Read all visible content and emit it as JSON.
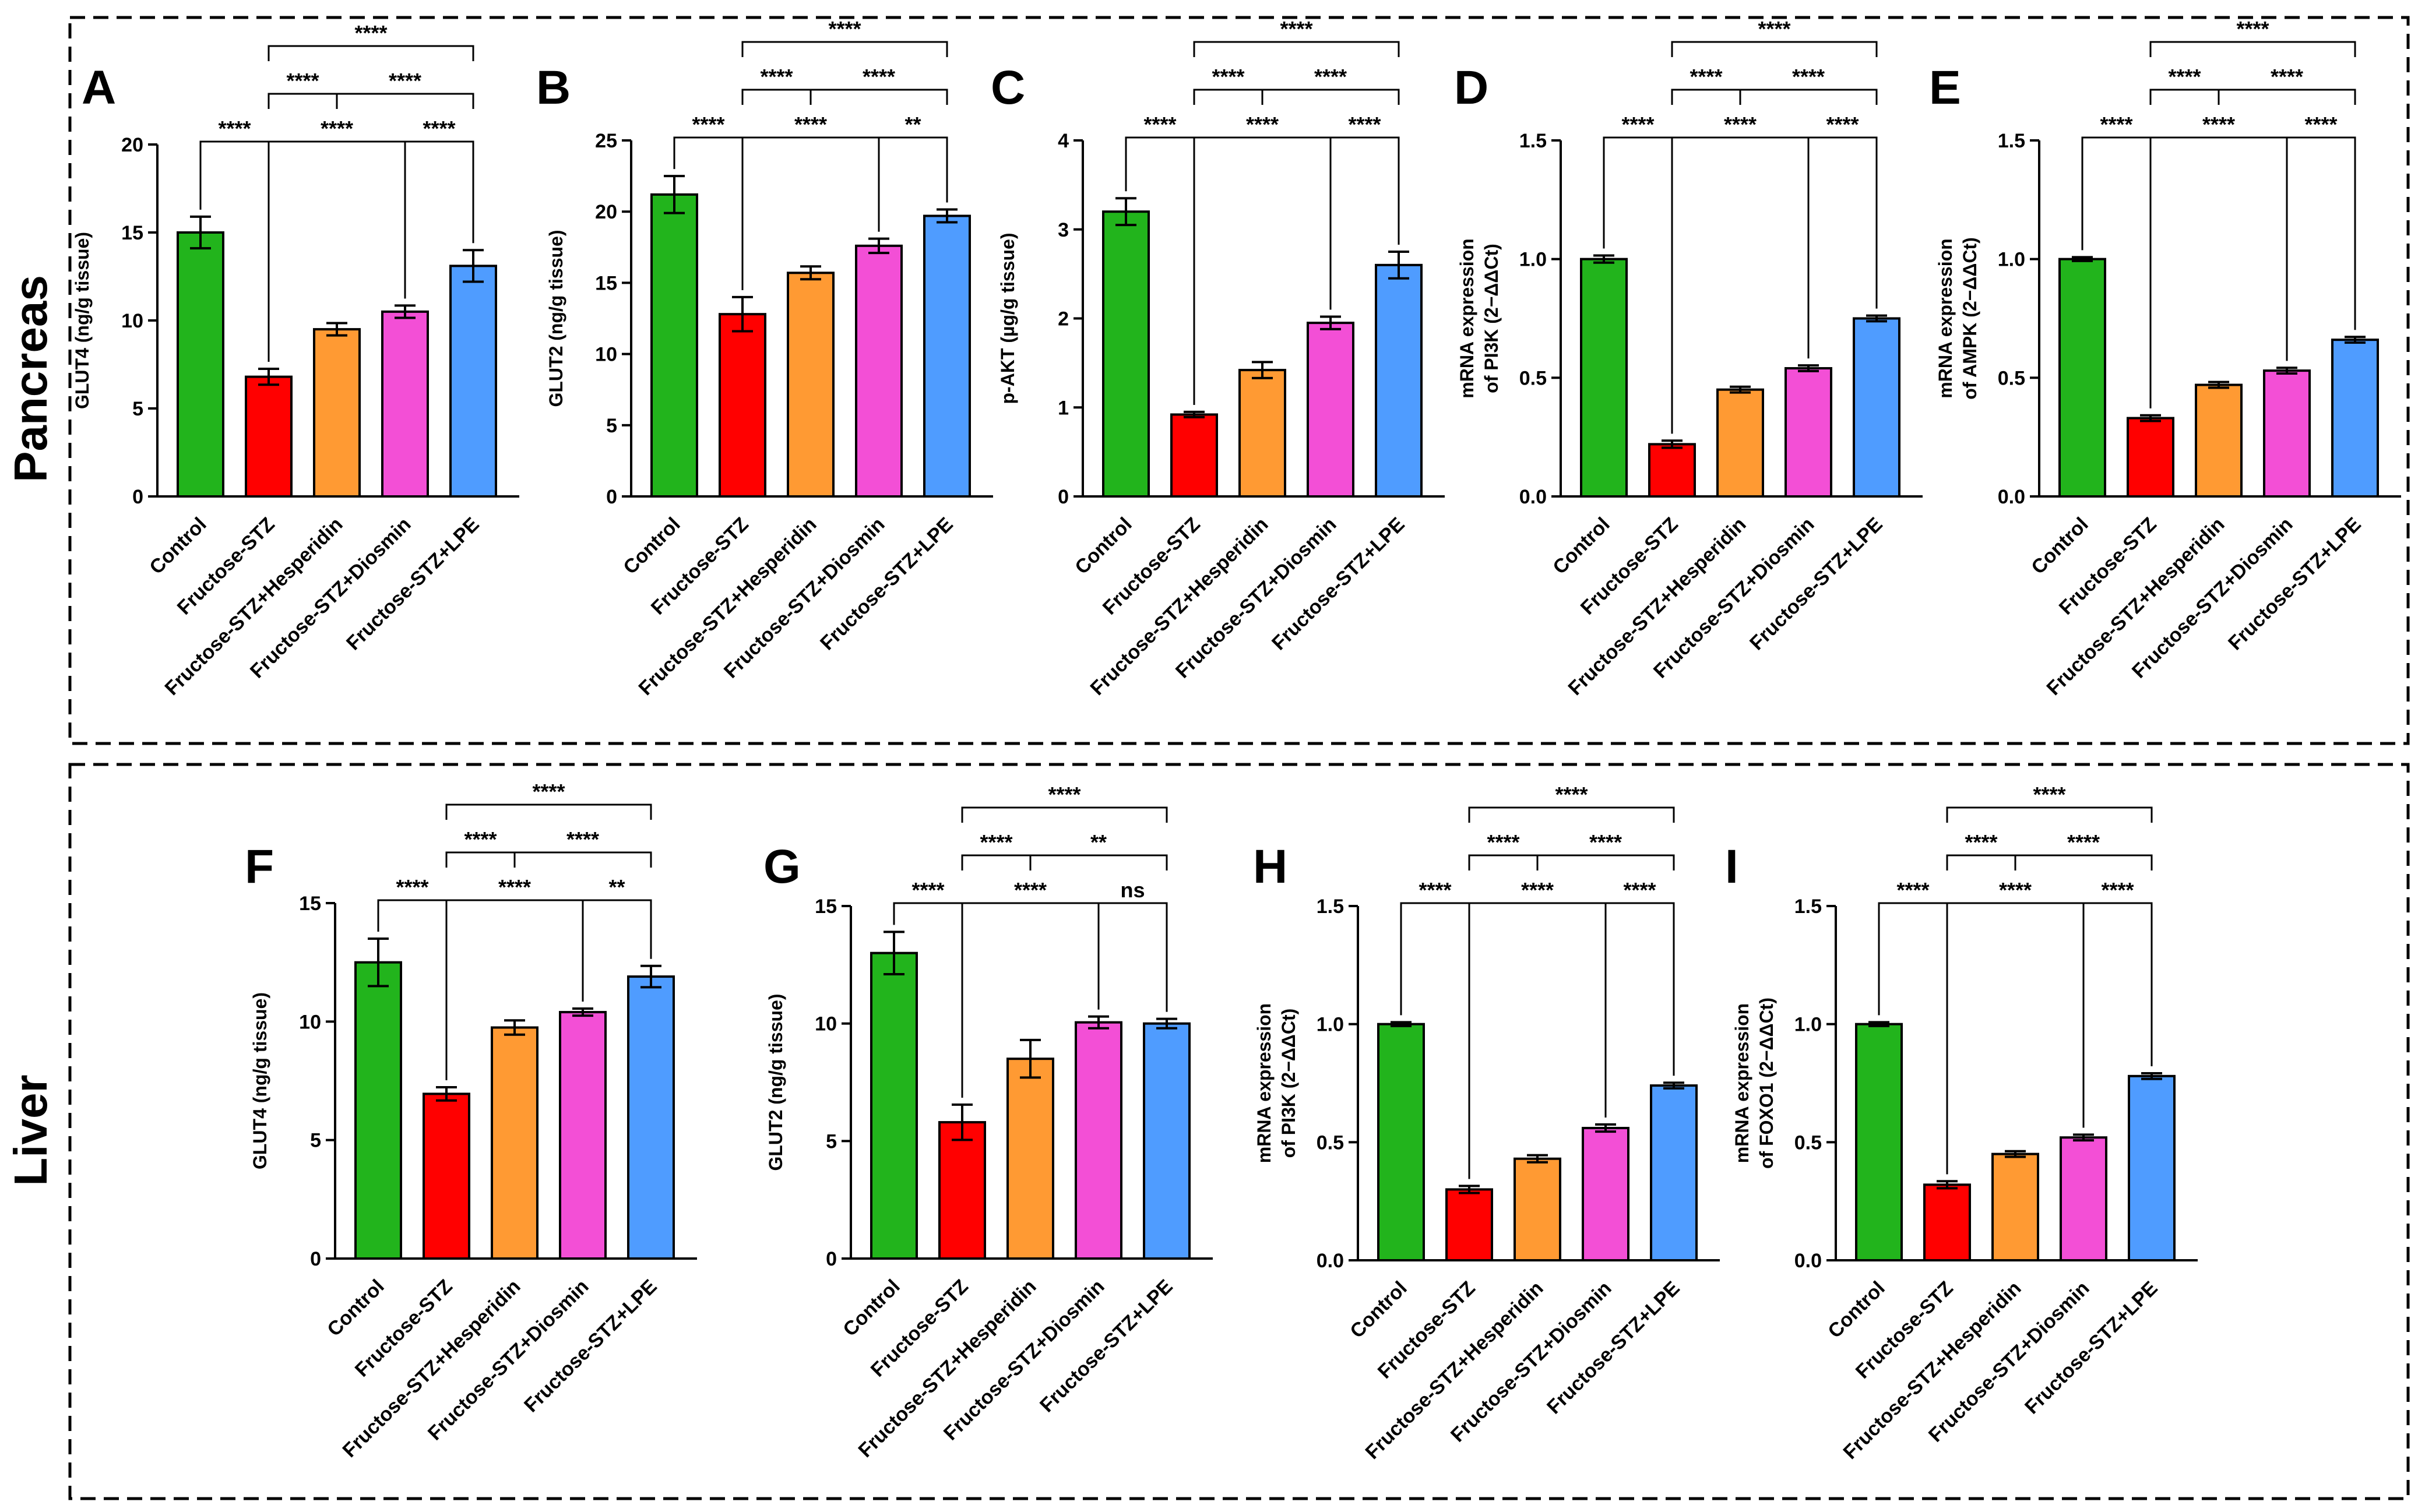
{
  "groups": [
    "Control",
    "Fructose-STZ",
    "Fructose-STZ+Hesperidin",
    "Fructose-STZ+Diosmin",
    "Fructose-STZ+LPE"
  ],
  "colors": [
    "#22b41c",
    "#ff0000",
    "#ff9a33",
    "#f34fd6",
    "#4f9cff"
  ],
  "sections": [
    {
      "label": "Pancreas"
    },
    {
      "label": "Liver"
    }
  ],
  "chart_data": [
    {
      "panel": "A",
      "section": "Pancreas",
      "type": "bar",
      "title": "",
      "ylabel": "GLUT4 (ng/g tissue)",
      "ylim": [
        0,
        20
      ],
      "yticks": [
        0,
        5,
        10,
        15,
        20
      ],
      "yticklabels": [
        "0",
        "5",
        "10",
        "15",
        "20"
      ],
      "categories": [
        "Control",
        "Fructose-STZ",
        "Fructose-STZ+Hesperidin",
        "Fructose-STZ+Diosmin",
        "Fructose-STZ+LPE"
      ],
      "values": [
        15.0,
        6.8,
        9.5,
        10.5,
        13.1
      ],
      "errors": [
        0.9,
        0.45,
        0.35,
        0.35,
        0.9
      ],
      "comparisons": [
        {
          "from": 0,
          "to": 1,
          "label": "****",
          "level": 0
        },
        {
          "from": 1,
          "to": 3,
          "label": "****",
          "level": 0
        },
        {
          "from": 3,
          "to": 4,
          "label": "****",
          "level": 0
        },
        {
          "from": 1,
          "to": 2,
          "label": "****",
          "level": 1
        },
        {
          "from": 2,
          "to": 4,
          "label": "****",
          "level": 1
        },
        {
          "from": 1,
          "to": 4,
          "label": "****",
          "level": 2
        }
      ]
    },
    {
      "panel": "B",
      "section": "Pancreas",
      "type": "bar",
      "title": "",
      "ylabel": "GLUT2 (ng/g tissue)",
      "ylim": [
        0,
        25
      ],
      "yticks": [
        0,
        5,
        10,
        15,
        20,
        25
      ],
      "yticklabels": [
        "0",
        "5",
        "10",
        "15",
        "20",
        "25"
      ],
      "categories": [
        "Control",
        "Fructose-STZ",
        "Fructose-STZ+Hesperidin",
        "Fructose-STZ+Diosmin",
        "Fructose-STZ+LPE"
      ],
      "values": [
        21.2,
        12.8,
        15.7,
        17.6,
        19.7
      ],
      "errors": [
        1.3,
        1.2,
        0.45,
        0.5,
        0.45
      ],
      "comparisons": [
        {
          "from": 0,
          "to": 1,
          "label": "****",
          "level": 0
        },
        {
          "from": 1,
          "to": 3,
          "label": "****",
          "level": 0
        },
        {
          "from": 3,
          "to": 4,
          "label": "**",
          "level": 0
        },
        {
          "from": 1,
          "to": 2,
          "label": "****",
          "level": 1
        },
        {
          "from": 2,
          "to": 4,
          "label": "****",
          "level": 1
        },
        {
          "from": 1,
          "to": 4,
          "label": "****",
          "level": 2
        }
      ]
    },
    {
      "panel": "C",
      "section": "Pancreas",
      "type": "bar",
      "title": "",
      "ylabel": "p-AKT (µg/g tissue)",
      "ylim": [
        0,
        4
      ],
      "yticks": [
        0,
        1,
        2,
        3,
        4
      ],
      "yticklabels": [
        "0",
        "1",
        "2",
        "3",
        "4"
      ],
      "categories": [
        "Control",
        "Fructose-STZ",
        "Fructose-STZ+Hesperidin",
        "Fructose-STZ+Diosmin",
        "Fructose-STZ+LPE"
      ],
      "values": [
        3.2,
        0.92,
        1.42,
        1.95,
        2.6
      ],
      "errors": [
        0.15,
        0.03,
        0.09,
        0.07,
        0.15
      ],
      "comparisons": [
        {
          "from": 0,
          "to": 1,
          "label": "****",
          "level": 0
        },
        {
          "from": 1,
          "to": 3,
          "label": "****",
          "level": 0
        },
        {
          "from": 3,
          "to": 4,
          "label": "****",
          "level": 0
        },
        {
          "from": 1,
          "to": 2,
          "label": "****",
          "level": 1
        },
        {
          "from": 2,
          "to": 4,
          "label": "****",
          "level": 1
        },
        {
          "from": 1,
          "to": 4,
          "label": "****",
          "level": 2
        }
      ]
    },
    {
      "panel": "D",
      "section": "Pancreas",
      "type": "bar",
      "title": "",
      "ylabel": [
        "mRNA expression",
        "of PI3K (2−ΔΔCt)"
      ],
      "ylim": [
        0,
        1.5
      ],
      "yticks": [
        0,
        0.5,
        1.0,
        1.5
      ],
      "yticklabels": [
        "0.0",
        "0.5",
        "1.0",
        "1.5"
      ],
      "categories": [
        "Control",
        "Fructose-STZ",
        "Fructose-STZ+Hesperidin",
        "Fructose-STZ+Diosmin",
        "Fructose-STZ+LPE"
      ],
      "values": [
        1.0,
        0.22,
        0.45,
        0.54,
        0.75
      ],
      "errors": [
        0.015,
        0.015,
        0.012,
        0.012,
        0.012
      ],
      "comparisons": [
        {
          "from": 0,
          "to": 1,
          "label": "****",
          "level": 0
        },
        {
          "from": 1,
          "to": 3,
          "label": "****",
          "level": 0
        },
        {
          "from": 3,
          "to": 4,
          "label": "****",
          "level": 0
        },
        {
          "from": 1,
          "to": 2,
          "label": "****",
          "level": 1
        },
        {
          "from": 2,
          "to": 4,
          "label": "****",
          "level": 1
        },
        {
          "from": 1,
          "to": 4,
          "label": "****",
          "level": 2
        }
      ]
    },
    {
      "panel": "E",
      "section": "Pancreas",
      "type": "bar",
      "title": "",
      "ylabel": [
        "mRNA expression",
        "of AMPK (2−ΔΔCt)"
      ],
      "ylim": [
        0,
        1.5
      ],
      "yticks": [
        0,
        0.5,
        1.0,
        1.5
      ],
      "yticklabels": [
        "0.0",
        "0.5",
        "1.0",
        "1.5"
      ],
      "categories": [
        "Control",
        "Fructose-STZ",
        "Fructose-STZ+Hesperidin",
        "Fructose-STZ+Diosmin",
        "Fructose-STZ+LPE"
      ],
      "values": [
        1.0,
        0.33,
        0.47,
        0.53,
        0.66
      ],
      "errors": [
        0.008,
        0.012,
        0.012,
        0.012,
        0.012
      ],
      "comparisons": [
        {
          "from": 0,
          "to": 1,
          "label": "****",
          "level": 0
        },
        {
          "from": 1,
          "to": 3,
          "label": "****",
          "level": 0
        },
        {
          "from": 3,
          "to": 4,
          "label": "****",
          "level": 0
        },
        {
          "from": 1,
          "to": 2,
          "label": "****",
          "level": 1
        },
        {
          "from": 2,
          "to": 4,
          "label": "****",
          "level": 1
        },
        {
          "from": 1,
          "to": 4,
          "label": "****",
          "level": 2
        }
      ]
    },
    {
      "panel": "F",
      "section": "Liver",
      "type": "bar",
      "title": "",
      "ylabel": "GLUT4 (ng/g tissue)",
      "ylim": [
        0,
        15
      ],
      "yticks": [
        0,
        5,
        10,
        15
      ],
      "yticklabels": [
        "0",
        "5",
        "10",
        "15"
      ],
      "categories": [
        "Control",
        "Fructose-STZ",
        "Fructose-STZ+Hesperidin",
        "Fructose-STZ+Diosmin",
        "Fructose-STZ+LPE"
      ],
      "values": [
        12.5,
        6.95,
        9.75,
        10.4,
        11.9
      ],
      "errors": [
        1.0,
        0.28,
        0.3,
        0.15,
        0.45
      ],
      "comparisons": [
        {
          "from": 0,
          "to": 1,
          "label": "****",
          "level": 0
        },
        {
          "from": 1,
          "to": 3,
          "label": "****",
          "level": 0
        },
        {
          "from": 3,
          "to": 4,
          "label": "**",
          "level": 0
        },
        {
          "from": 1,
          "to": 2,
          "label": "****",
          "level": 1
        },
        {
          "from": 2,
          "to": 4,
          "label": "****",
          "level": 1
        },
        {
          "from": 1,
          "to": 4,
          "label": "****",
          "level": 2
        }
      ]
    },
    {
      "panel": "G",
      "section": "Liver",
      "type": "bar",
      "title": "",
      "ylabel": "GLUT2 (ng/g tissue)",
      "ylim": [
        0,
        15
      ],
      "yticks": [
        0,
        5,
        10,
        15
      ],
      "yticklabels": [
        "0",
        "5",
        "10",
        "15"
      ],
      "categories": [
        "Control",
        "Fructose-STZ",
        "Fructose-STZ+Hesperidin",
        "Fructose-STZ+Diosmin",
        "Fructose-STZ+LPE"
      ],
      "values": [
        13.0,
        5.8,
        8.5,
        10.05,
        10.0
      ],
      "errors": [
        0.9,
        0.75,
        0.8,
        0.25,
        0.2
      ],
      "comparisons": [
        {
          "from": 0,
          "to": 1,
          "label": "****",
          "level": 0
        },
        {
          "from": 1,
          "to": 3,
          "label": "****",
          "level": 0
        },
        {
          "from": 3,
          "to": 4,
          "label": "ns",
          "level": 0
        },
        {
          "from": 1,
          "to": 2,
          "label": "****",
          "level": 1
        },
        {
          "from": 2,
          "to": 4,
          "label": "**",
          "level": 1
        },
        {
          "from": 1,
          "to": 4,
          "label": "****",
          "level": 2
        }
      ]
    },
    {
      "panel": "H",
      "section": "Liver",
      "type": "bar",
      "title": "",
      "ylabel": [
        "mRNA expression",
        "of PI3K (2−ΔΔCt)"
      ],
      "ylim": [
        0,
        1.5
      ],
      "yticks": [
        0,
        0.5,
        1.0,
        1.5
      ],
      "yticklabels": [
        "0.0",
        "0.5",
        "1.0",
        "1.5"
      ],
      "categories": [
        "Control",
        "Fructose-STZ",
        "Fructose-STZ+Hesperidin",
        "Fructose-STZ+Diosmin",
        "Fructose-STZ+LPE"
      ],
      "values": [
        1.0,
        0.3,
        0.43,
        0.56,
        0.74
      ],
      "errors": [
        0.008,
        0.015,
        0.015,
        0.015,
        0.012
      ],
      "comparisons": [
        {
          "from": 0,
          "to": 1,
          "label": "****",
          "level": 0
        },
        {
          "from": 1,
          "to": 3,
          "label": "****",
          "level": 0
        },
        {
          "from": 3,
          "to": 4,
          "label": "****",
          "level": 0
        },
        {
          "from": 1,
          "to": 2,
          "label": "****",
          "level": 1
        },
        {
          "from": 2,
          "to": 4,
          "label": "****",
          "level": 1
        },
        {
          "from": 1,
          "to": 4,
          "label": "****",
          "level": 2
        }
      ]
    },
    {
      "panel": "I",
      "section": "Liver",
      "type": "bar",
      "title": "",
      "ylabel": [
        "mRNA expression",
        "of FOXO1 (2−ΔΔCt)"
      ],
      "ylim": [
        0,
        1.5
      ],
      "yticks": [
        0,
        0.5,
        1.0,
        1.5
      ],
      "yticklabels": [
        "0.0",
        "0.5",
        "1.0",
        "1.5"
      ],
      "categories": [
        "Control",
        "Fructose-STZ",
        "Fructose-STZ+Hesperidin",
        "Fructose-STZ+Diosmin",
        "Fructose-STZ+LPE"
      ],
      "values": [
        1.0,
        0.32,
        0.45,
        0.52,
        0.78
      ],
      "errors": [
        0.008,
        0.015,
        0.012,
        0.012,
        0.012
      ],
      "comparisons": [
        {
          "from": 0,
          "to": 1,
          "label": "****",
          "level": 0
        },
        {
          "from": 1,
          "to": 3,
          "label": "****",
          "level": 0
        },
        {
          "from": 3,
          "to": 4,
          "label": "****",
          "level": 0
        },
        {
          "from": 1,
          "to": 2,
          "label": "****",
          "level": 1
        },
        {
          "from": 2,
          "to": 4,
          "label": "****",
          "level": 1
        },
        {
          "from": 1,
          "to": 4,
          "label": "****",
          "level": 2
        }
      ]
    }
  ]
}
